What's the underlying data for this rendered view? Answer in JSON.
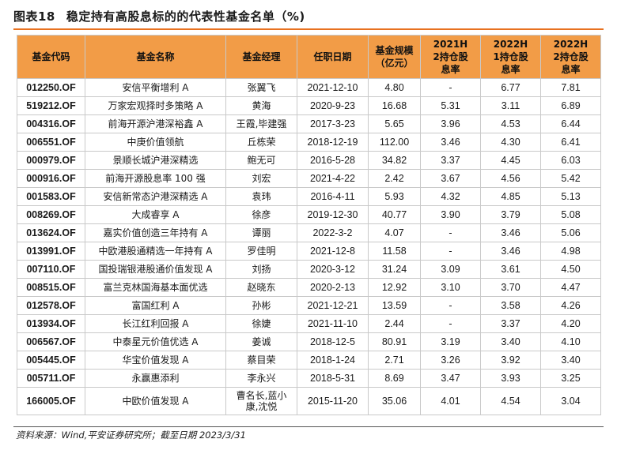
{
  "title": {
    "figure_label": "图表18",
    "text": "稳定持有高股息标的的代表性基金名单（%)"
  },
  "table": {
    "headers": [
      "基金代码",
      "基金名称",
      "基金经理",
      "任职日期",
      "基金规模（亿元）",
      "2021H2持仓股息率",
      "2022H1持仓股息率",
      "2022H2持仓股息率"
    ],
    "rows": [
      [
        "012250.OF",
        "安信平衡增利 A",
        "张翼飞",
        "2021-12-10",
        "4.80",
        "-",
        "6.77",
        "7.81"
      ],
      [
        "519212.OF",
        "万家宏观择时多策略 A",
        "黄海",
        "2020-9-23",
        "16.68",
        "5.31",
        "3.11",
        "6.89"
      ],
      [
        "004316.OF",
        "前海开源沪港深裕鑫 A",
        "王霞,毕建强",
        "2017-3-23",
        "5.65",
        "3.96",
        "4.53",
        "6.44"
      ],
      [
        "006551.OF",
        "中庚价值领航",
        "丘栋荣",
        "2018-12-19",
        "112.00",
        "3.46",
        "4.30",
        "6.41"
      ],
      [
        "000979.OF",
        "景顺长城沪港深精选",
        "鲍无可",
        "2016-5-28",
        "34.82",
        "3.37",
        "4.45",
        "6.03"
      ],
      [
        "000916.OF",
        "前海开源股息率 100 强",
        "刘宏",
        "2021-4-22",
        "2.42",
        "3.67",
        "4.56",
        "5.42"
      ],
      [
        "001583.OF",
        "安信新常态沪港深精选 A",
        "袁玮",
        "2016-4-11",
        "5.93",
        "4.32",
        "4.85",
        "5.13"
      ],
      [
        "008269.OF",
        "大成睿享 A",
        "徐彦",
        "2019-12-30",
        "40.77",
        "3.90",
        "3.79",
        "5.08"
      ],
      [
        "013624.OF",
        "嘉实价值创造三年持有 A",
        "谭丽",
        "2022-3-2",
        "4.07",
        "-",
        "3.46",
        "5.06"
      ],
      [
        "013991.OF",
        "中欧港股通精选一年持有 A",
        "罗佳明",
        "2021-12-8",
        "11.58",
        "-",
        "3.46",
        "4.98"
      ],
      [
        "007110.OF",
        "国投瑞银港股通价值发现 A",
        "刘扬",
        "2020-3-12",
        "31.24",
        "3.09",
        "3.61",
        "4.50"
      ],
      [
        "008515.OF",
        "富兰克林国海基本面优选",
        "赵晓东",
        "2020-2-13",
        "12.92",
        "3.10",
        "3.70",
        "4.47"
      ],
      [
        "012578.OF",
        "富国红利 A",
        "孙彬",
        "2021-12-21",
        "13.59",
        "-",
        "3.58",
        "4.26"
      ],
      [
        "013934.OF",
        "长江红利回报 A",
        "徐婕",
        "2021-11-10",
        "2.44",
        "-",
        "3.37",
        "4.20"
      ],
      [
        "006567.OF",
        "中泰星元价值优选 A",
        "姜诚",
        "2018-12-5",
        "80.91",
        "3.19",
        "3.40",
        "4.10"
      ],
      [
        "005445.OF",
        "华宝价值发现 A",
        "蔡目荣",
        "2018-1-24",
        "2.71",
        "3.26",
        "3.92",
        "3.40"
      ],
      [
        "005711.OF",
        "永赢惠添利",
        "李永兴",
        "2018-5-31",
        "8.69",
        "3.47",
        "3.93",
        "3.25"
      ],
      [
        "166005.OF",
        "中欧价值发现 A",
        "曹名长,蓝小康,沈悦",
        "2015-11-20",
        "35.06",
        "4.01",
        "4.54",
        "3.04"
      ]
    ]
  },
  "source": "资料来源：Wind,平安证券研究所；截至日期 2023/3/31",
  "colors": {
    "header_bg": "#f29c47",
    "rule": "#e8711f"
  }
}
